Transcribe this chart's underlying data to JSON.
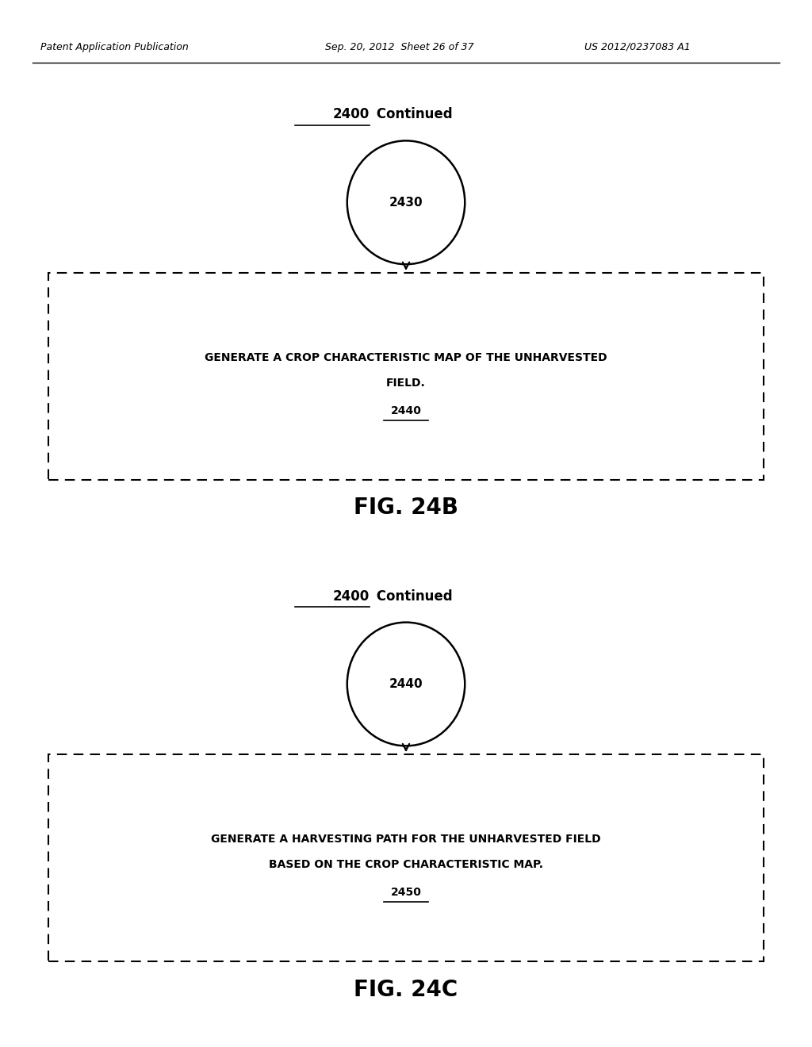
{
  "bg_color": "#ffffff",
  "text_color": "#000000",
  "header_left": "Patent Application Publication",
  "header_mid": "Sep. 20, 2012  Sheet 26 of 37",
  "header_right": "US 2012/0237083 A1",
  "fig24b": {
    "title_num": "2400",
    "title_text": " Continued",
    "circle_label": "2430",
    "box_text_line1": "GENERATE A CROP CHARACTERISTIC MAP OF THE UNHARVESTED",
    "box_text_line2": "FIELD.",
    "box_label": "2440",
    "fig_label": "FIG. 24B"
  },
  "fig24c": {
    "title_num": "2400",
    "title_text": " Continued",
    "circle_label": "2440",
    "box_text_line1": "GENERATE A HARVESTING PATH FOR THE UNHARVESTED FIELD",
    "box_text_line2": "BASED ON THE CROP CHARACTERISTIC MAP.",
    "box_label": "2450",
    "fig_label": "FIG. 24C"
  }
}
